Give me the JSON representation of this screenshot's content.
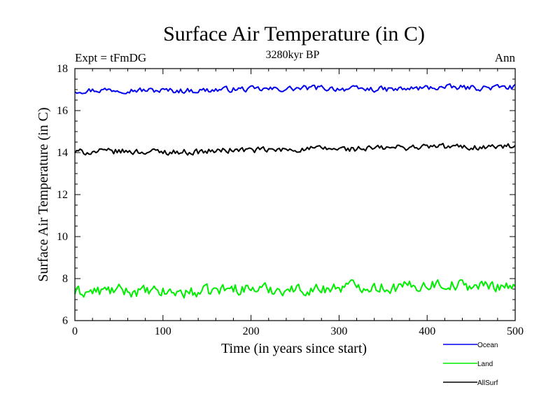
{
  "chart_data": {
    "type": "line",
    "title": "Surface Air Temperature (in C)",
    "subtitle": "3280kyr BP",
    "annotation_left": "Expt = tFmDG",
    "annotation_right": "Ann",
    "xlabel": "Time (in years since start)",
    "ylabel": "Surface Air Temperature (in C)",
    "xlim": [
      0,
      500
    ],
    "ylim": [
      6,
      18
    ],
    "xticks": [
      0,
      100,
      200,
      300,
      400,
      500
    ],
    "yticks": [
      6,
      8,
      10,
      12,
      14,
      16,
      18
    ],
    "x": {
      "start": 0,
      "end": 500,
      "step": 2
    },
    "series": [
      {
        "name": "Ocean",
        "color": "#0000ee",
        "mean_start": 16.95,
        "mean_end": 17.1,
        "amplitude": 0.12,
        "values": [
          16.95,
          17.05,
          16.9,
          16.85,
          17.0,
          16.95,
          17.1,
          16.9,
          16.8,
          17.05,
          16.95,
          17.0
        ]
      },
      {
        "name": "Land",
        "color": "#00ee00",
        "mean_start": 7.4,
        "mean_end": 7.65,
        "amplitude": 0.25,
        "values": [
          7.4,
          7.6,
          7.3,
          7.2,
          7.7,
          7.5,
          7.4,
          7.9,
          7.5,
          8.0,
          7.6,
          7.7
        ]
      },
      {
        "name": "AllSurf",
        "color": "#000000",
        "mean_start": 14.05,
        "mean_end": 14.25,
        "amplitude": 0.13,
        "values": [
          14.05,
          14.1,
          14.0,
          13.9,
          14.15,
          14.05,
          14.2,
          14.1,
          14.25,
          14.35,
          14.2,
          14.25
        ]
      }
    ]
  },
  "legend": {
    "items": [
      "Ocean",
      "Land",
      "AllSurf"
    ]
  }
}
